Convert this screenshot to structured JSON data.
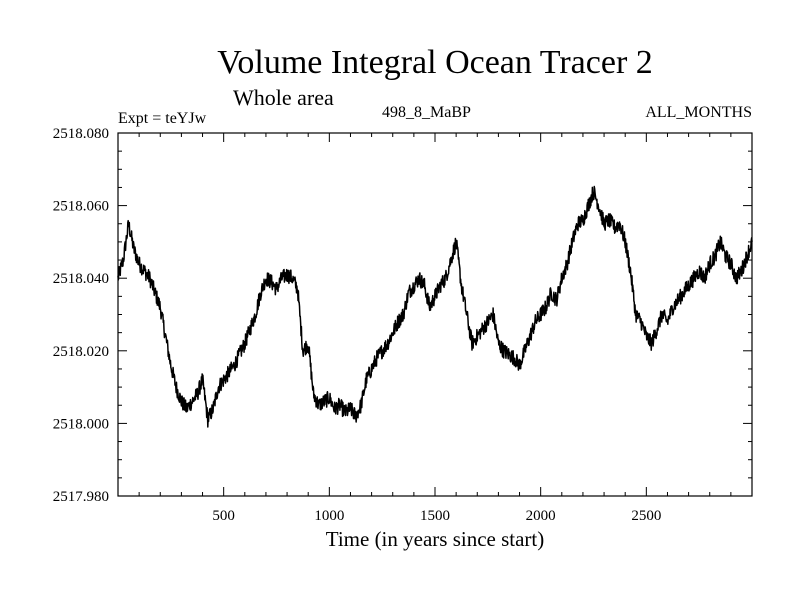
{
  "chart_data": {
    "type": "line",
    "title": "Volume Integral Ocean Tracer 2",
    "subtitle": "Whole area",
    "experiment": "Expt = teYJw",
    "period_label": "498_8_MaBP",
    "months_label": "ALL_MONTHS",
    "xlabel": "Time (in years since start)",
    "ylabel": "",
    "xlim": [
      0,
      3000
    ],
    "ylim": [
      2517.98,
      2518.08
    ],
    "xticks": [
      500,
      1000,
      1500,
      2000,
      2500
    ],
    "xtick_labels": [
      "500",
      "1000",
      "1500",
      "2000",
      "2500"
    ],
    "yticks": [
      2517.98,
      2518.0,
      2518.02,
      2518.04,
      2518.06,
      2518.08
    ],
    "ytick_labels": [
      "2517.980",
      "2518.000",
      "2518.020",
      "2518.040",
      "2518.060",
      "2518.080"
    ],
    "series": [
      {
        "name": "Volume Integral Ocean Tracer 2",
        "color": "#000000",
        "x": [
          0,
          25,
          50,
          75,
          100,
          125,
          150,
          175,
          200,
          225,
          250,
          275,
          300,
          325,
          350,
          375,
          400,
          425,
          450,
          475,
          500,
          525,
          550,
          575,
          600,
          625,
          650,
          675,
          700,
          725,
          750,
          775,
          800,
          825,
          850,
          875,
          900,
          925,
          950,
          975,
          1000,
          1025,
          1050,
          1075,
          1100,
          1125,
          1150,
          1175,
          1200,
          1225,
          1250,
          1275,
          1300,
          1325,
          1350,
          1375,
          1400,
          1425,
          1450,
          1475,
          1500,
          1525,
          1550,
          1575,
          1600,
          1625,
          1650,
          1675,
          1700,
          1725,
          1750,
          1775,
          1800,
          1825,
          1850,
          1875,
          1900,
          1925,
          1950,
          1975,
          2000,
          2025,
          2050,
          2075,
          2100,
          2125,
          2150,
          2175,
          2200,
          2225,
          2250,
          2275,
          2300,
          2325,
          2350,
          2375,
          2400,
          2425,
          2450,
          2475,
          2500,
          2525,
          2550,
          2575,
          2600,
          2625,
          2650,
          2675,
          2700,
          2725,
          2750,
          2775,
          2800,
          2825,
          2850,
          2875,
          2900,
          2925,
          2950,
          2975,
          3000
        ],
        "values": [
          2518.04,
          2518.045,
          2518.055,
          2518.048,
          2518.044,
          2518.042,
          2518.04,
          2518.036,
          2518.032,
          2518.024,
          2518.016,
          2518.01,
          2518.006,
          2518.004,
          2518.006,
          2518.008,
          2518.012,
          2518.001,
          2518.004,
          2518.01,
          2518.012,
          2518.014,
          2518.016,
          2518.019,
          2518.022,
          2518.026,
          2518.03,
          2518.036,
          2518.04,
          2518.039,
          2518.037,
          2518.04,
          2518.041,
          2518.04,
          2518.037,
          2518.02,
          2518.022,
          2518.008,
          2518.005,
          2518.006,
          2518.007,
          2518.004,
          2518.005,
          2518.003,
          2518.004,
          2518.002,
          2518.005,
          2518.012,
          2518.015,
          2518.018,
          2518.02,
          2518.022,
          2518.025,
          2518.028,
          2518.03,
          2518.036,
          2518.038,
          2518.04,
          2518.038,
          2518.032,
          2518.035,
          2518.038,
          2518.04,
          2518.045,
          2518.05,
          2518.038,
          2518.03,
          2518.022,
          2518.024,
          2518.026,
          2518.028,
          2518.03,
          2518.022,
          2518.02,
          2518.019,
          2518.018,
          2518.016,
          2518.02,
          2518.024,
          2518.028,
          2518.03,
          2518.032,
          2518.036,
          2518.034,
          2518.04,
          2518.044,
          2518.05,
          2518.055,
          2518.056,
          2518.06,
          2518.064,
          2518.06,
          2518.055,
          2518.056,
          2518.054,
          2518.055,
          2518.05,
          2518.042,
          2518.03,
          2518.028,
          2518.024,
          2518.022,
          2518.026,
          2518.03,
          2518.028,
          2518.032,
          2518.034,
          2518.036,
          2518.038,
          2518.04,
          2518.042,
          2518.04,
          2518.044,
          2518.046,
          2518.05,
          2518.046,
          2518.044,
          2518.04,
          2518.042,
          2518.046,
          2518.05
        ]
      }
    ]
  }
}
